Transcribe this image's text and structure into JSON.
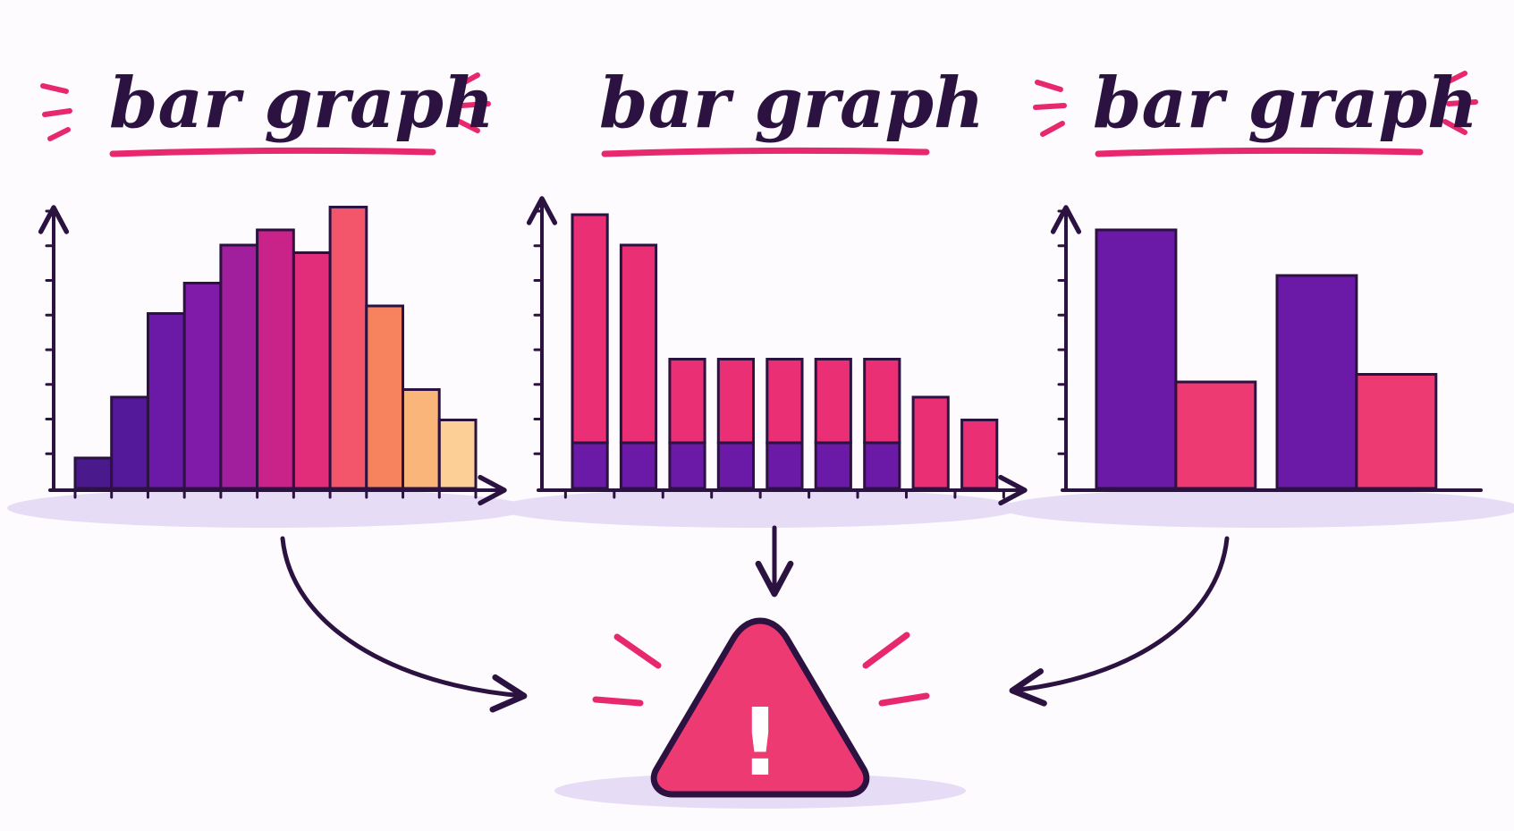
{
  "colors": {
    "ink": "#2b1240",
    "accent": "#e8286e",
    "underline": "#e8286e",
    "shadow": "#e6dcf5",
    "triangle_fill": "#ee3a72",
    "triangle_stroke": "#2b1240",
    "exclaim": "#ffffff"
  },
  "panels": [
    {
      "title": "bar graph",
      "sparkles": true,
      "chart_data": {
        "type": "bar",
        "style": "histogram",
        "values": [
          4,
          12,
          23,
          27,
          32,
          34,
          31,
          37,
          24,
          13,
          9
        ],
        "colors": [
          "#4a1a8c",
          "#54189a",
          "#6a1aa6",
          "#7f1ba8",
          "#a11f9c",
          "#c92289",
          "#e22e7a",
          "#f3566a",
          "#f7825e",
          "#f9b57a",
          "#fbcf96"
        ],
        "ylim": [
          0,
          40
        ],
        "grid": false
      }
    },
    {
      "title": "bar graph",
      "sparkles": false,
      "chart_data": {
        "type": "bar",
        "style": "stacked",
        "series": [
          {
            "values": [
              6,
              6,
              6,
              6,
              6,
              6,
              6,
              0,
              0
            ],
            "color": "#6a1aa6"
          },
          {
            "values": [
              30,
              26,
              11,
              11,
              11,
              11,
              11,
              12,
              9
            ],
            "color": "#ea2f74"
          }
        ],
        "ylim": [
          0,
          40
        ],
        "grid": false
      }
    },
    {
      "title": "bar graph",
      "sparkles": true,
      "chart_data": {
        "type": "bar",
        "style": "grouped",
        "series": [
          {
            "values": [
              34,
              28
            ],
            "color": "#6a1aa6"
          },
          {
            "values": [
              14,
              15
            ],
            "color": "#ee3a72"
          }
        ],
        "ylim": [
          0,
          40
        ],
        "grid": false
      }
    }
  ],
  "warning": {
    "icon": "warning-triangle-icon",
    "symbol": "!"
  }
}
